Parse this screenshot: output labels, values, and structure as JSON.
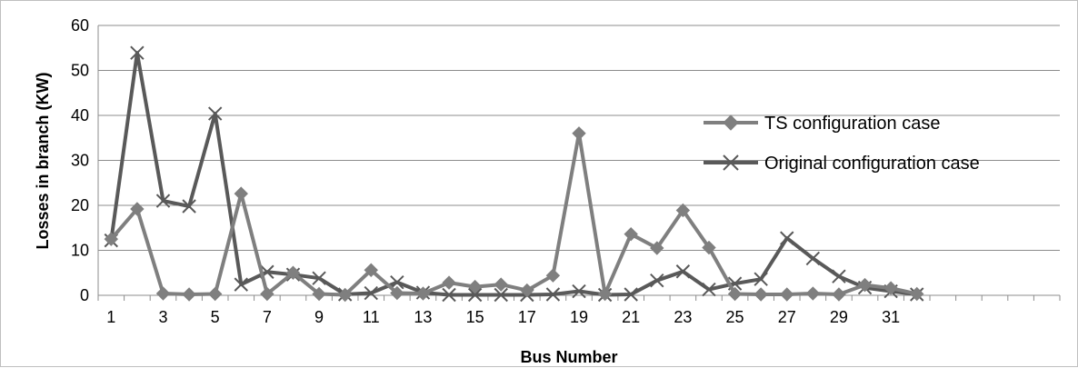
{
  "chart_data": {
    "type": "line",
    "title": "",
    "xlabel": "Bus Number",
    "ylabel": "Losses in branch (KW)",
    "ylim": [
      0,
      60
    ],
    "yticks": [
      0,
      10,
      20,
      30,
      40,
      50,
      60
    ],
    "x": [
      1,
      2,
      3,
      4,
      5,
      6,
      7,
      8,
      9,
      10,
      11,
      12,
      13,
      14,
      15,
      16,
      17,
      18,
      19,
      20,
      21,
      22,
      23,
      24,
      25,
      26,
      27,
      28,
      29,
      30,
      31,
      32
    ],
    "xtick_labels": [
      "1",
      "3",
      "5",
      "7",
      "9",
      "11",
      "13",
      "15",
      "17",
      "19",
      "21",
      "23",
      "25",
      "27",
      "29",
      "31"
    ],
    "xlim": [
      0.5,
      37.5
    ],
    "grid": "horizontal",
    "legend_position": "right",
    "series": [
      {
        "name": "TS configuration case",
        "color": "#7f7f7f",
        "marker": "diamond",
        "values": [
          12.5,
          19.2,
          0.4,
          0.2,
          0.3,
          22.6,
          0.3,
          5.0,
          0.3,
          0.1,
          5.6,
          0.5,
          0.4,
          2.8,
          1.9,
          2.4,
          1.1,
          4.4,
          36.0,
          0.3,
          13.6,
          10.5,
          18.9,
          10.6,
          0.3,
          0.2,
          0.2,
          0.4,
          0.2,
          2.3,
          1.6,
          0.3
        ]
      },
      {
        "name": "Original configuration case",
        "color": "#595959",
        "marker": "x",
        "values": [
          12.2,
          53.9,
          21.0,
          19.8,
          40.4,
          2.4,
          5.2,
          4.6,
          3.8,
          0.2,
          0.5,
          2.9,
          0.6,
          0.1,
          0.1,
          0.1,
          0.1,
          0.2,
          0.9,
          0.1,
          0.2,
          3.3,
          5.3,
          1.3,
          2.6,
          3.6,
          12.7,
          8.2,
          4.2,
          1.7,
          0.9,
          0.2
        ]
      }
    ]
  }
}
